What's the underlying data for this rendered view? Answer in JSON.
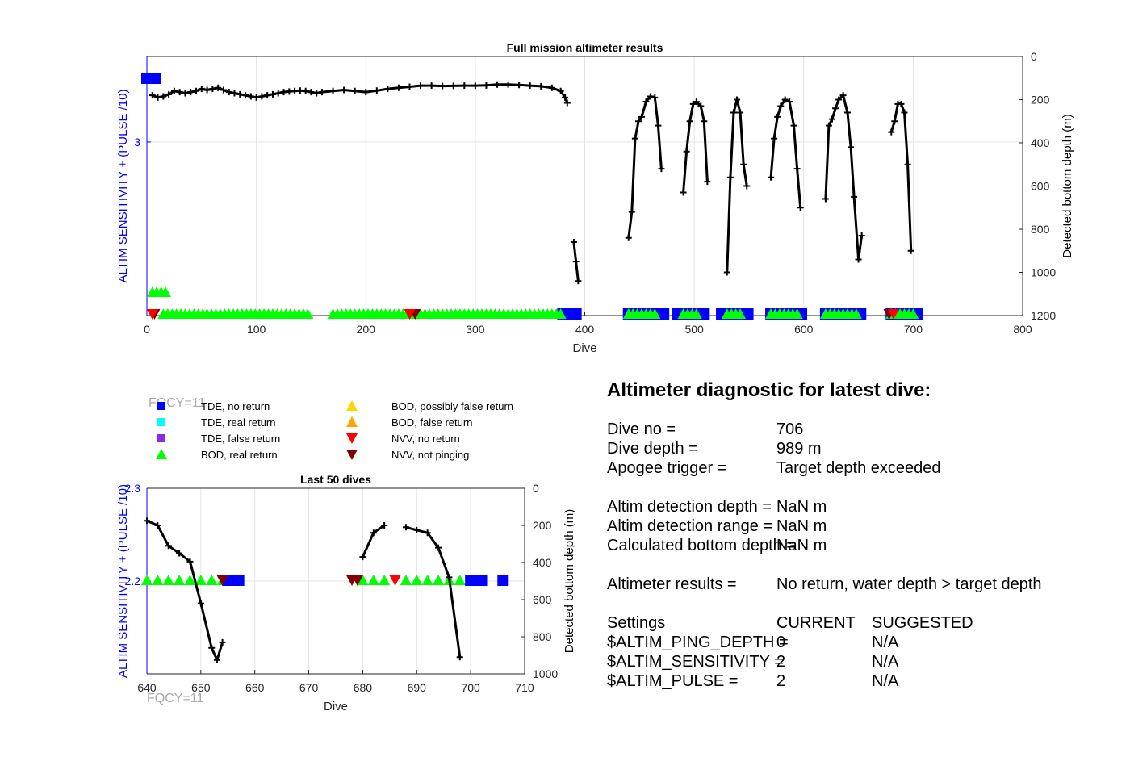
{
  "chart_data": [
    {
      "type": "line",
      "title": "Full mission altimeter results",
      "xlabel": "Dive",
      "ylabel": "ALTIM SENSITIVITY + (PULSE /10)",
      "y2label": "Detected bottom depth (m)",
      "xlim": [
        0,
        800
      ],
      "y2lim": [
        0,
        1200
      ],
      "xticks": [
        "0",
        "100",
        "200",
        "300",
        "400",
        "500",
        "600",
        "700",
        "800"
      ],
      "yticks": [
        "3"
      ],
      "y2ticks": [
        "0",
        "200",
        "400",
        "600",
        "800",
        "1000",
        "1200"
      ],
      "grid": true,
      "series": [
        {
          "role": "bottom-depth",
          "segments": [
            [
              [
                5,
                180
              ],
              [
                10,
                190
              ],
              [
                15,
                185
              ],
              [
                20,
                175
              ],
              [
                25,
                160
              ],
              [
                30,
                165
              ],
              [
                35,
                170
              ],
              [
                40,
                165
              ],
              [
                45,
                160
              ],
              [
                50,
                150
              ],
              [
                55,
                155
              ],
              [
                60,
                150
              ],
              [
                65,
                145
              ],
              [
                70,
                155
              ],
              [
                75,
                165
              ],
              [
                80,
                170
              ],
              [
                85,
                175
              ],
              [
                90,
                180
              ],
              [
                95,
                185
              ],
              [
                100,
                190
              ],
              [
                105,
                185
              ],
              [
                110,
                180
              ],
              [
                115,
                175
              ],
              [
                120,
                170
              ],
              [
                125,
                165
              ],
              [
                130,
                162
              ],
              [
                135,
                160
              ],
              [
                140,
                158
              ],
              [
                145,
                160
              ],
              [
                150,
                165
              ],
              [
                155,
                170
              ],
              [
                160,
                165
              ],
              [
                170,
                160
              ],
              [
                180,
                155
              ],
              [
                190,
                160
              ],
              [
                200,
                165
              ],
              [
                210,
                158
              ],
              [
                220,
                150
              ],
              [
                230,
                145
              ],
              [
                240,
                140
              ],
              [
                250,
                135
              ],
              [
                260,
                135
              ],
              [
                270,
                137
              ],
              [
                280,
                136
              ],
              [
                290,
                135
              ],
              [
                300,
                135
              ],
              [
                310,
                134
              ],
              [
                320,
                130
              ],
              [
                330,
                130
              ],
              [
                340,
                132
              ],
              [
                350,
                135
              ],
              [
                360,
                138
              ],
              [
                370,
                145
              ],
              [
                378,
                160
              ],
              [
                382,
                190
              ],
              [
                384,
                215
              ]
            ],
            [
              [
                390,
                860
              ],
              [
                392,
                950
              ],
              [
                394,
                1040
              ]
            ],
            [
              [
                440,
                840
              ],
              [
                443,
                720
              ],
              [
                446,
                380
              ],
              [
                449,
                300
              ],
              [
                452,
                280
              ],
              [
                456,
                210
              ],
              [
                460,
                185
              ],
              [
                464,
                190
              ],
              [
                467,
                320
              ],
              [
                470,
                520
              ]
            ],
            [
              [
                490,
                630
              ],
              [
                493,
                440
              ],
              [
                496,
                300
              ],
              [
                499,
                220
              ],
              [
                502,
                210
              ],
              [
                506,
                230
              ],
              [
                509,
                300
              ],
              [
                512,
                580
              ]
            ],
            [
              [
                530,
                1000
              ],
              [
                533,
                560
              ],
              [
                536,
                260
              ],
              [
                539,
                200
              ],
              [
                542,
                260
              ],
              [
                545,
                500
              ],
              [
                548,
                600
              ]
            ],
            [
              [
                570,
                560
              ],
              [
                573,
                380
              ],
              [
                576,
                280
              ],
              [
                579,
                230
              ],
              [
                583,
                200
              ],
              [
                587,
                210
              ],
              [
                591,
                320
              ],
              [
                594,
                520
              ],
              [
                597,
                700
              ]
            ],
            [
              [
                620,
                660
              ],
              [
                623,
                320
              ],
              [
                626,
                290
              ],
              [
                629,
                240
              ],
              [
                632,
                200
              ],
              [
                636,
                180
              ],
              [
                640,
                260
              ],
              [
                643,
                420
              ],
              [
                646,
                650
              ],
              [
                650,
                940
              ],
              [
                653,
                830
              ]
            ],
            [
              [
                680,
                350
              ],
              [
                683,
                300
              ],
              [
                686,
                220
              ],
              [
                689,
                220
              ],
              [
                692,
                260
              ],
              [
                695,
                500
              ],
              [
                698,
                900
              ]
            ]
          ]
        }
      ],
      "markers": [
        {
          "legend": "TDE, no return",
          "color": "#0000ff",
          "ranges": [
            [
              0,
              10,
              "high"
            ],
            [
              380,
              395
            ],
            [
              440,
              475
            ],
            [
              485,
              510
            ],
            [
              525,
              550
            ],
            [
              570,
              600
            ],
            [
              620,
              655
            ],
            [
              680,
              705
            ]
          ]
        },
        {
          "legend": "BOD, real return",
          "color": "#00ff00",
          "ranges": [
            [
              5,
              18,
              "mid"
            ],
            [
              15,
              150
            ],
            [
              170,
              380
            ],
            [
              440,
              465
            ],
            [
              490,
              505
            ],
            [
              530,
              545
            ],
            [
              570,
              595
            ],
            [
              620,
              650
            ],
            [
              680,
              700
            ]
          ]
        },
        {
          "legend": "NVV, not pinging",
          "color": "#800000",
          "dives": [
            7,
            245,
            678
          ]
        },
        {
          "legend": "NVV, no return",
          "color": "#ff0000",
          "dives": [
            5,
            240,
            682
          ]
        }
      ],
      "annotations": [
        "FQCY=11"
      ]
    },
    {
      "type": "line",
      "title": "Last 50 dives",
      "xlabel": "Dive",
      "ylabel": "ALTIM SENSITIVITY + (PULSE /10)",
      "y2label": "Detected bottom depth (m)",
      "xlim": [
        640,
        710
      ],
      "ylim": [
        2.1,
        2.3
      ],
      "y2lim": [
        0,
        1000
      ],
      "xticks": [
        "640",
        "650",
        "660",
        "670",
        "680",
        "690",
        "700",
        "710"
      ],
      "yticks": [
        "2.2",
        "2.3"
      ],
      "y2ticks": [
        "0",
        "200",
        "400",
        "600",
        "800",
        "1000"
      ],
      "grid": true,
      "series": [
        {
          "role": "bottom-depth",
          "segments": [
            [
              [
                640,
                175
              ],
              [
                642,
                200
              ],
              [
                644,
                310
              ],
              [
                646,
                350
              ],
              [
                648,
                395
              ],
              [
                650,
                620
              ],
              [
                652,
                860
              ],
              [
                653,
                925
              ],
              [
                654,
                830
              ]
            ],
            [
              [
                680,
                370
              ],
              [
                682,
                240
              ],
              [
                684,
                200
              ]
            ],
            [
              [
                688,
                210
              ],
              [
                690,
                225
              ],
              [
                692,
                240
              ],
              [
                694,
                320
              ],
              [
                696,
                480
              ],
              [
                698,
                910
              ]
            ]
          ]
        }
      ],
      "markers": [
        {
          "legend": "BOD, real return",
          "color": "#00ff00",
          "dives": [
            640,
            642,
            644,
            646,
            648,
            650,
            652,
            654,
            680,
            682,
            684,
            688,
            690,
            692,
            694,
            696,
            698
          ]
        },
        {
          "legend": "TDE, no return",
          "color": "#0000ff",
          "dives": [
            655,
            656,
            657,
            700,
            701,
            702,
            706
          ]
        },
        {
          "legend": "NVV, not pinging",
          "color": "#800000",
          "dives": [
            654,
            678,
            679
          ]
        },
        {
          "legend": "NVV, no return",
          "color": "#ff0000",
          "dives": [
            686
          ]
        }
      ],
      "annotations": [
        "FQCY=11"
      ]
    }
  ],
  "legend": {
    "items": [
      {
        "label": "TDE, no return",
        "color": "#0000ff",
        "marker": "square"
      },
      {
        "label": "TDE, real return",
        "color": "#00ffff",
        "marker": "square"
      },
      {
        "label": "TDE, false return",
        "color": "#8a2be2",
        "marker": "square"
      },
      {
        "label": "BOD, real return",
        "color": "#00ff00",
        "marker": "triangle-up"
      },
      {
        "label": "BOD, possibly false return",
        "color": "#ffd700",
        "marker": "triangle-up"
      },
      {
        "label": "BOD, false return",
        "color": "#ffa500",
        "marker": "triangle-up"
      },
      {
        "label": "NVV, no return",
        "color": "#ff0000",
        "marker": "triangle-down"
      },
      {
        "label": "NVV, not pinging",
        "color": "#800000",
        "marker": "triangle-down"
      }
    ]
  },
  "diagnostic": {
    "heading": "Altimeter diagnostic for latest dive:",
    "rows": [
      {
        "label": "Dive no =",
        "value": "706"
      },
      {
        "label": "Dive depth =",
        "value": "989 m"
      },
      {
        "label": "Apogee trigger =",
        "value": "Target depth exceeded"
      },
      {
        "label": "Altim detection depth =",
        "value": "NaN m"
      },
      {
        "label": "Altim detection range =",
        "value": "NaN m"
      },
      {
        "label": "Calculated bottom depth =",
        "value": "NaN m"
      },
      {
        "label": "Altimeter results =",
        "value": "No return, water depth > target depth"
      }
    ],
    "settings": {
      "header": {
        "label": "Settings",
        "current": "CURRENT",
        "suggested": "SUGGESTED"
      },
      "rows": [
        {
          "label": "$ALTIM_PING_DEPTH =",
          "current": "0",
          "suggested": "N/A"
        },
        {
          "label": "$ALTIM_SENSITIVITY =",
          "current": "2",
          "suggested": "N/A"
        },
        {
          "label": "$ALTIM_PULSE =",
          "current": "2",
          "suggested": "N/A"
        }
      ]
    }
  }
}
